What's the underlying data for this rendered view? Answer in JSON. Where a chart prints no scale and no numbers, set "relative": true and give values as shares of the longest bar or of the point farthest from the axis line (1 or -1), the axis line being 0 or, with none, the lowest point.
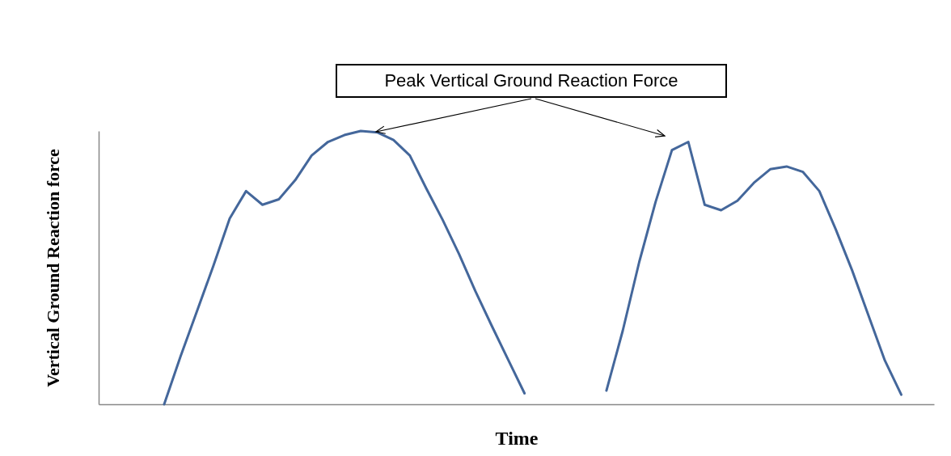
{
  "chart_data": {
    "type": "line",
    "relative": true,
    "xlabel": "Time",
    "ylabel": "Vertical Ground Reaction force",
    "tick_labels": false,
    "grid": false,
    "legend": false,
    "marker": "none",
    "line_style": "solid",
    "annotations": [
      "Peak Vertical Ground Reaction Force"
    ],
    "categories": [
      null,
      null,
      null,
      null,
      null,
      null,
      null,
      null,
      null,
      null,
      null,
      null,
      null,
      null,
      null,
      null,
      null,
      null,
      null,
      null,
      null,
      null,
      null,
      null,
      null,
      null,
      null,
      null,
      null,
      null,
      null,
      null,
      null,
      null,
      null,
      null,
      null,
      null,
      null,
      null,
      null,
      null,
      null,
      null,
      null,
      null,
      null,
      null,
      null,
      null,
      null,
      null
    ],
    "series": [
      {
        "color": "#44679b",
        "values": [
          null,
          null,
          null,
          null,
          0.0,
          0.175,
          0.34,
          0.506,
          0.68,
          0.78,
          0.73,
          0.75,
          0.82,
          0.91,
          0.96,
          0.985,
          1.0,
          0.995,
          0.967,
          0.91,
          0.79,
          0.675,
          0.55,
          0.414,
          0.287,
          0.163,
          0.04,
          null,
          null,
          null,
          null,
          null,
          null,
          null,
          null,
          null,
          null,
          null,
          null,
          null,
          null,
          null,
          null,
          null,
          null,
          null,
          null,
          null,
          null,
          null,
          null,
          null
        ]
      },
      {
        "color": "#44679b",
        "values": [
          null,
          null,
          null,
          null,
          null,
          null,
          null,
          null,
          null,
          null,
          null,
          null,
          null,
          null,
          null,
          null,
          null,
          null,
          null,
          null,
          null,
          null,
          null,
          null,
          null,
          null,
          null,
          null,
          null,
          null,
          null,
          0.05,
          0.27,
          0.52,
          0.74,
          0.93,
          0.96,
          0.73,
          0.71,
          0.745,
          0.81,
          0.86,
          0.87,
          0.85,
          0.78,
          0.64,
          0.49,
          0.325,
          0.16,
          0.035,
          null,
          null
        ]
      }
    ]
  }
}
